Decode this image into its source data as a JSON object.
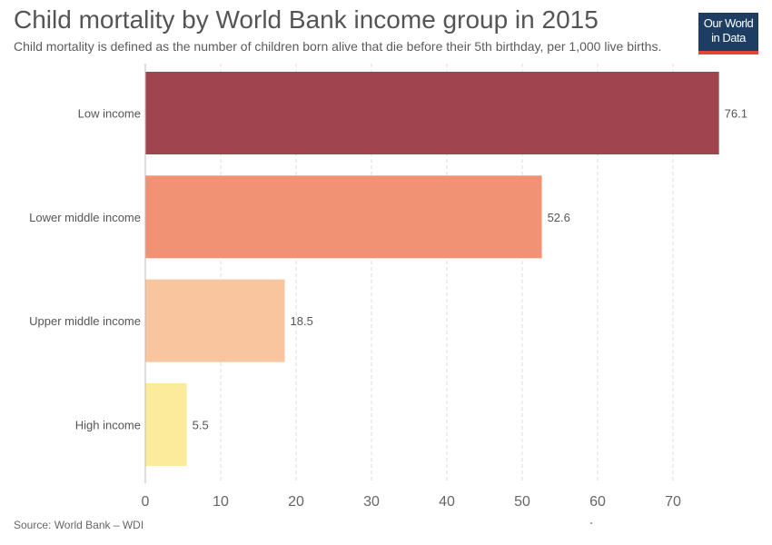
{
  "header": {
    "title": "Child mortality by World Bank income group in 2015",
    "subtitle": "Child mortality is defined as the number of children born alive that die before their 5th birthday, per 1,000 live births."
  },
  "logo": {
    "line1": "Our World",
    "line2": "in Data",
    "bg_color": "#1d3d63",
    "accent_color": "#e2453b"
  },
  "footer": {
    "source": "Source: World Bank – WDI"
  },
  "chart_data": {
    "type": "bar",
    "orientation": "horizontal",
    "title": "Child mortality by World Bank income group in 2015",
    "subtitle": "Child mortality is defined as the number of children born alive that die before their 5th birthday, per 1,000 live births.",
    "categories": [
      "Low income",
      "Lower middle income",
      "Upper middle income",
      "High income"
    ],
    "values": [
      76.1,
      52.6,
      18.5,
      5.5
    ],
    "value_labels": [
      "76.1",
      "52.6",
      "18.5",
      "5.5"
    ],
    "colors": [
      "#a0454f",
      "#f19274",
      "#f8c59e",
      "#fbeb9b"
    ],
    "xlim": [
      0,
      77
    ],
    "xticks": [
      0,
      10,
      20,
      30,
      40,
      50,
      60,
      70
    ],
    "xtick_labels": [
      "0",
      "10",
      "20",
      "30",
      "40",
      "50",
      "60",
      "70"
    ],
    "grid": "vertical dashed",
    "legend": "none",
    "xlabel": "",
    "ylabel": ""
  }
}
